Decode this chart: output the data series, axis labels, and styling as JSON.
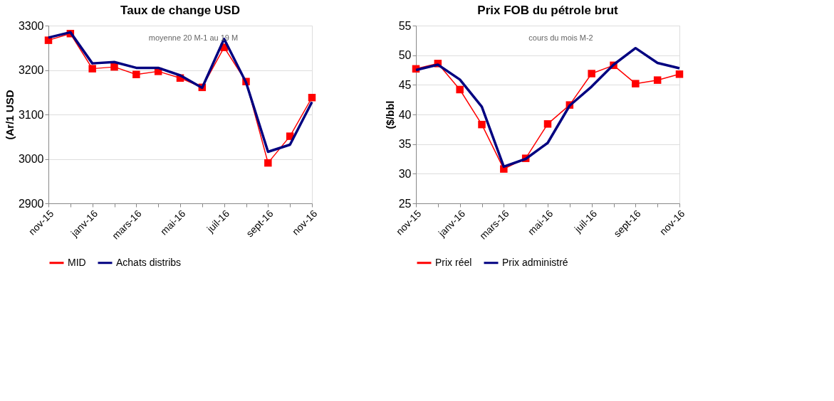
{
  "chart_data": [
    {
      "type": "line",
      "title": "Taux de change USD",
      "ylabel": "(Ar/1 USD",
      "categories": [
        "nov-15",
        null,
        "janv-16",
        null,
        "mars-16",
        null,
        "mai-16",
        null,
        "juil-16",
        null,
        "sept-16",
        null,
        "nov-16"
      ],
      "series": [
        {
          "name": "MID",
          "color": "#ff0000",
          "marker": "square",
          "values": [
            3267,
            3282,
            3203,
            3207,
            3190,
            3197,
            3182,
            3161,
            3251,
            3174,
            2991,
            3051,
            3138
          ]
        },
        {
          "name": "Achats distribs",
          "color": "#000080",
          "marker": "none",
          "values": [
            3273,
            3285,
            3215,
            3218,
            3205,
            3205,
            3188,
            3160,
            3270,
            3172,
            3016,
            3032,
            3128
          ]
        }
      ],
      "ylim": [
        2900,
        3300
      ],
      "yticks": [
        2900,
        3000,
        3100,
        3200,
        3300
      ],
      "grid": "y",
      "legend": "bottom",
      "annotations": [
        "moyenne 20 M-1 au 19 M"
      ]
    },
    {
      "type": "line",
      "title": "Prix FOB du pétrole brut",
      "ylabel": "($/bbl",
      "categories": [
        "nov-15",
        null,
        "janv-16",
        null,
        "mars-16",
        null,
        "mai-16",
        null,
        "juil-16",
        null,
        "sept-16",
        null,
        "nov-16"
      ],
      "series": [
        {
          "name": "Prix réel",
          "color": "#ff0000",
          "marker": "square",
          "values": [
            47.7,
            48.6,
            44.2,
            38.3,
            30.8,
            32.6,
            38.4,
            41.6,
            46.9,
            48.3,
            45.2,
            45.8,
            46.8
          ]
        },
        {
          "name": "Prix administré",
          "color": "#000080",
          "marker": "none",
          "values": [
            47.5,
            48.4,
            45.9,
            41.3,
            31.2,
            32.5,
            35.2,
            41.5,
            44.7,
            48.4,
            51.2,
            48.7,
            47.8
          ]
        }
      ],
      "ylim": [
        25,
        55
      ],
      "yticks": [
        25,
        30,
        35,
        40,
        45,
        50,
        55
      ],
      "grid": "y",
      "legend": "bottom",
      "annotations": [
        "cours du mois M-2"
      ]
    }
  ]
}
